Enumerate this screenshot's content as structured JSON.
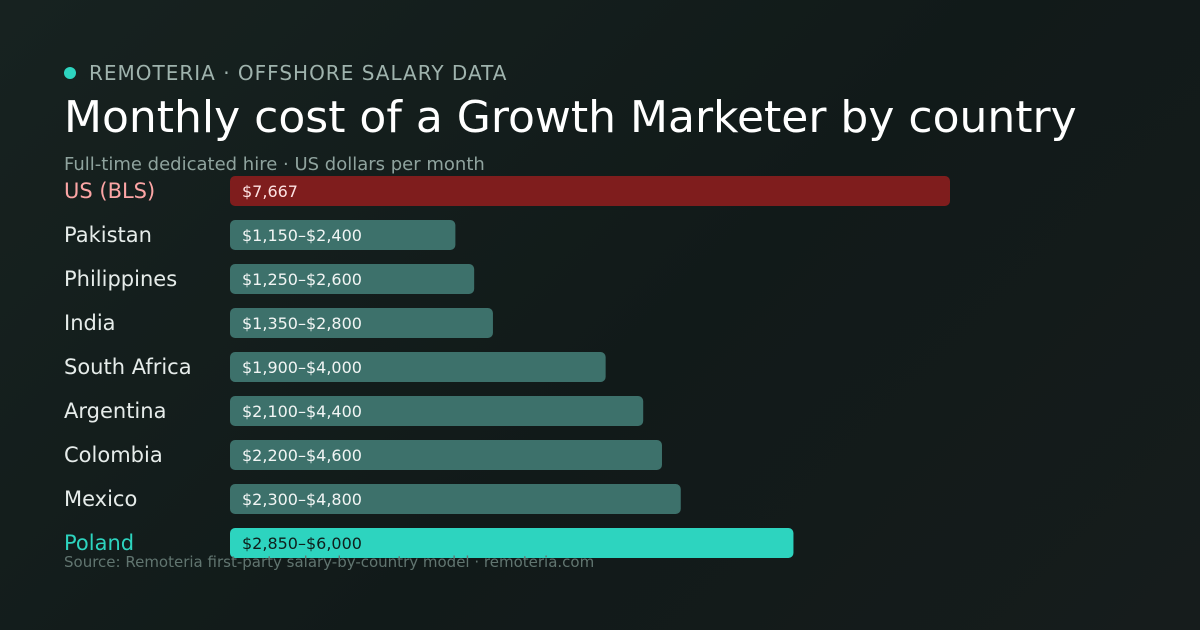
{
  "header": {
    "brand": "REMOTERIA · OFFSHORE SALARY DATA",
    "title": "Monthly cost of a Growth Marketer by country",
    "subtitle": "Full-time dedicated hire · US dollars per month"
  },
  "footer": {
    "source": "Source: Remoteria first-party salary-by-country model · remoteria.com"
  },
  "colors": {
    "accent": "#2dd4bf",
    "benchmark_bar": "#7f1d1d",
    "benchmark_label": "#fca5a5",
    "range_bar": "#3d716b",
    "highlight_bar": "#2dd4bf"
  },
  "chart_data": {
    "type": "bar",
    "orientation": "horizontal",
    "unit": "US dollars per month",
    "categories": [
      "US (BLS)",
      "Pakistan",
      "Philippines",
      "India",
      "South Africa",
      "Argentina",
      "Colombia",
      "Mexico",
      "Poland"
    ],
    "values": [
      7667,
      2400,
      2600,
      2800,
      4000,
      4400,
      4600,
      4800,
      6000
    ],
    "ranges": [
      [
        7667,
        7667
      ],
      [
        1150,
        2400
      ],
      [
        1250,
        2600
      ],
      [
        1350,
        2800
      ],
      [
        1900,
        4000
      ],
      [
        2100,
        4400
      ],
      [
        2200,
        4600
      ],
      [
        2300,
        4800
      ],
      [
        2850,
        6000
      ]
    ],
    "value_labels": [
      "$7,667",
      "$1,150–$2,400",
      "$1,250–$2,600",
      "$1,350–$2,800",
      "$1,900–$4,000",
      "$2,100–$4,400",
      "$2,200–$4,600",
      "$2,300–$4,800",
      "$2,850–$6,000"
    ],
    "roles": [
      "benchmark",
      "range",
      "range",
      "range",
      "range",
      "range",
      "range",
      "range",
      "highlight"
    ],
    "xlim": [
      0,
      7667
    ],
    "grid": false,
    "legend": "none"
  }
}
